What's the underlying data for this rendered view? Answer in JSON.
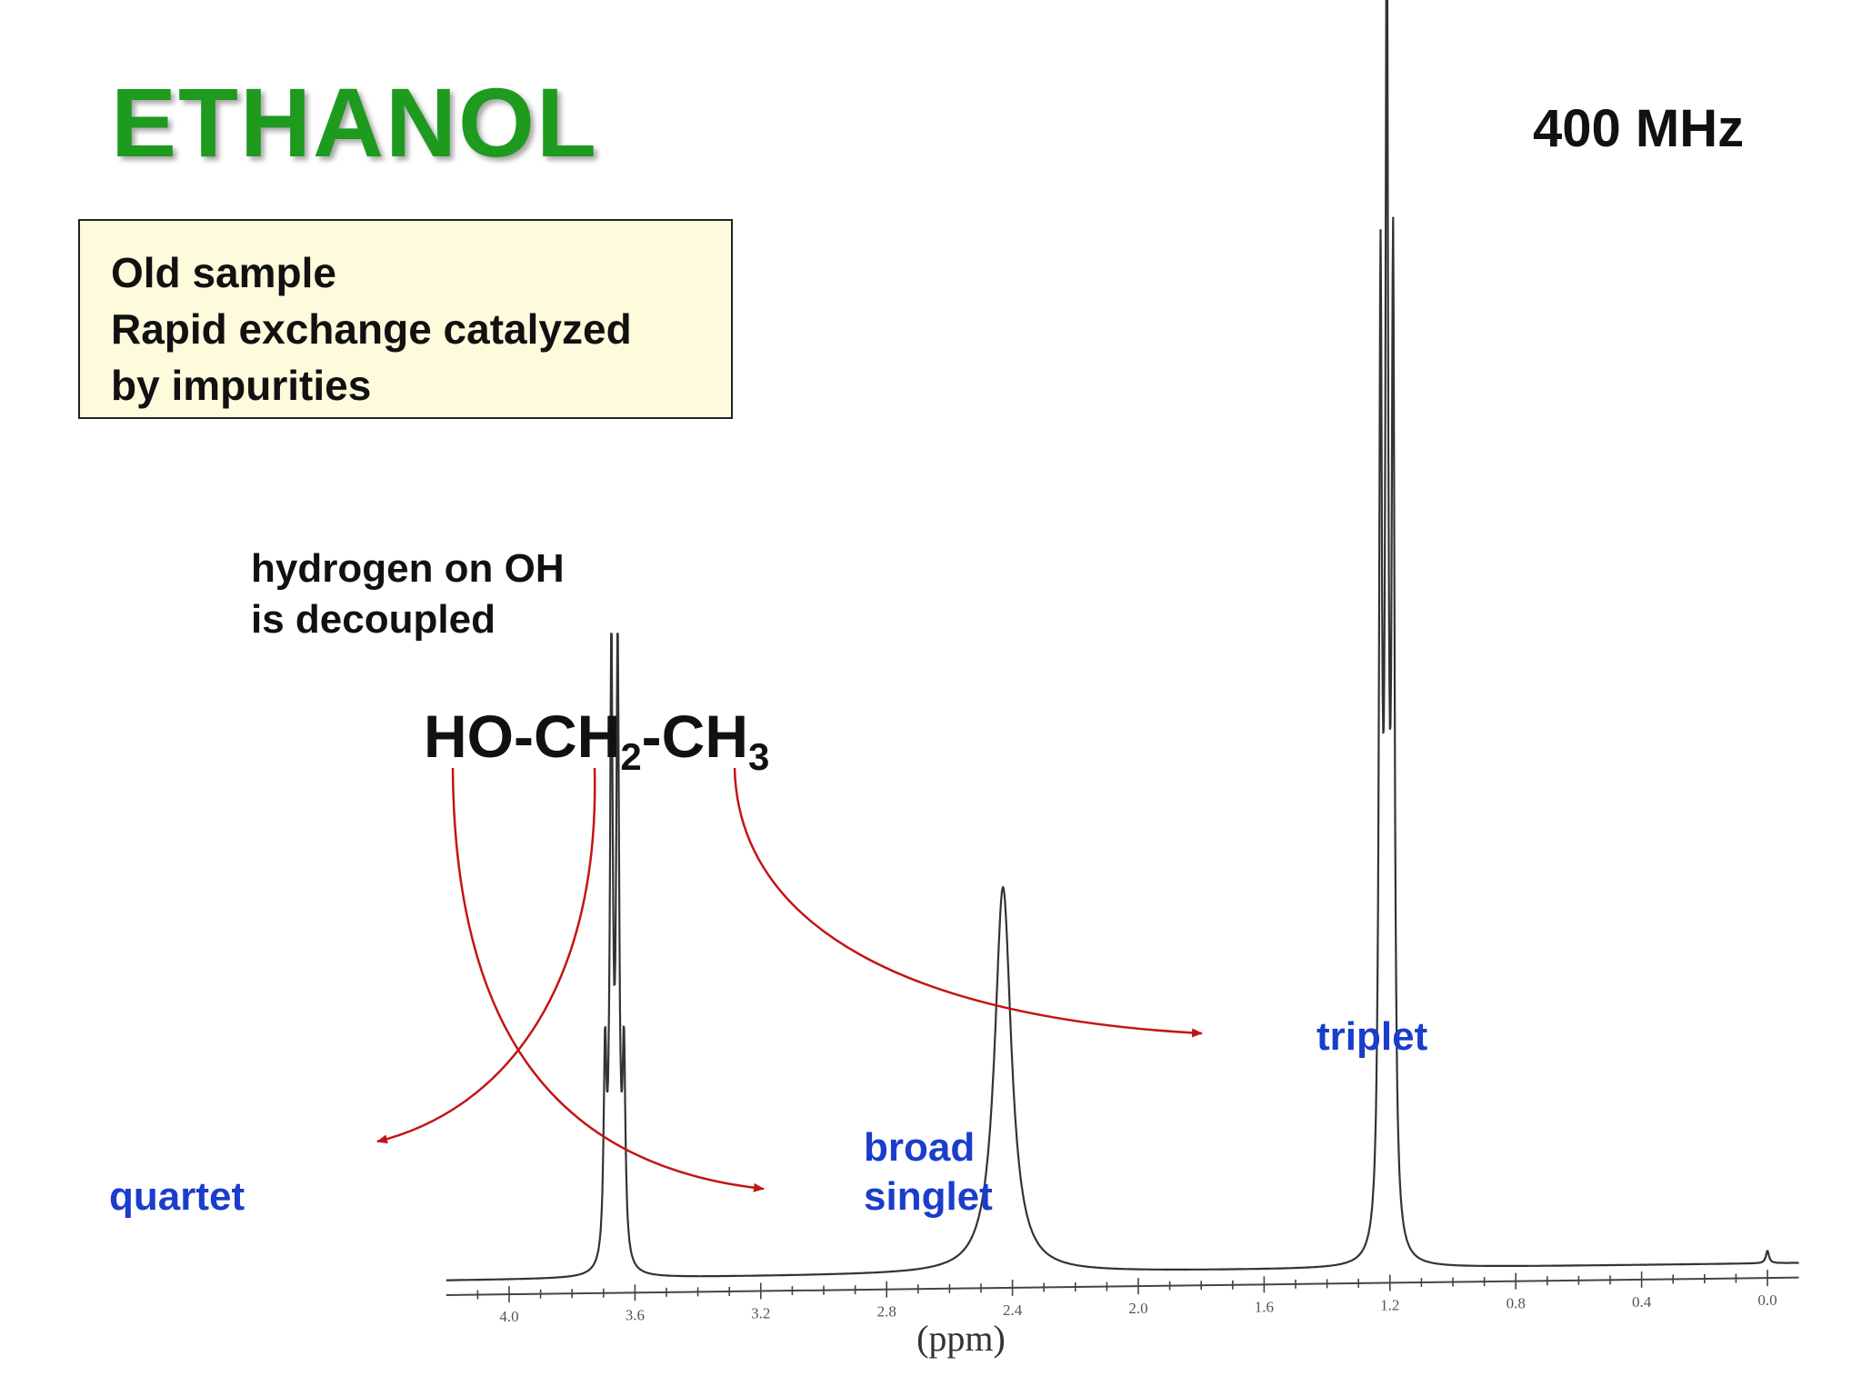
{
  "slide": {
    "title": "ETHANOL",
    "frequency": "400 MHz",
    "note_lines": [
      "Old sample",
      "Rapid exchange catalyzed",
      "by impurities"
    ],
    "decoupled_lines": [
      "hydrogen on OH",
      "is decoupled"
    ],
    "formula": {
      "p1": "HO-CH",
      "s1": "2",
      "p2": "-CH",
      "s2": "3"
    },
    "peak_labels": {
      "quartet": "quartet",
      "broad_singlet": [
        "broad",
        "singlet"
      ],
      "triplet": "triplet"
    },
    "colors": {
      "title": "#1e9a1e",
      "label": "#1a3dcc",
      "arrow": "#c41414",
      "note_bg": "#fdfbdc"
    }
  },
  "chart_data": {
    "type": "line",
    "title": "",
    "xlabel": "(ppm)",
    "ylabel": "",
    "xlim": [
      4.2,
      -0.1
    ],
    "x_reversed": true,
    "x_ticks": [
      4.0,
      3.6,
      3.2,
      2.8,
      2.4,
      2.0,
      1.6,
      1.2,
      0.8,
      0.4,
      0.0
    ],
    "x_tick_labels": [
      "4.0",
      "3.6",
      "3.2",
      "2.8",
      "2.4",
      "2.0",
      "1.6",
      "1.2",
      "0.8",
      "0.4",
      "0.0"
    ],
    "grid": false,
    "series": [
      {
        "peaks": [
          {
            "label": "quartet",
            "shift": 3.66,
            "multiplicity": 4,
            "lines": [
              3.695,
              3.675,
              3.655,
              3.635
            ],
            "relative_heights": [
              0.16,
              0.48,
              0.48,
              0.16
            ]
          },
          {
            "label": "broad singlet",
            "shift": 2.43,
            "multiplicity": 1,
            "lines": [
              2.43
            ],
            "relative_heights": [
              0.31
            ]
          },
          {
            "label": "triplet",
            "shift": 1.21,
            "multiplicity": 3,
            "lines": [
              1.23,
              1.21,
              1.19
            ],
            "relative_heights": [
              0.75,
              1.0,
              0.76
            ]
          }
        ],
        "reference_peak": {
          "shift": 0.0,
          "relative_height": 0.01
        }
      }
    ]
  }
}
